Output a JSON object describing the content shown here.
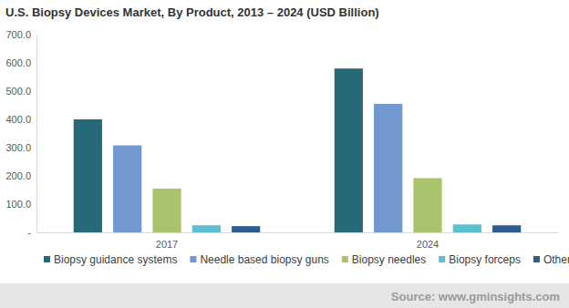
{
  "chart_data": {
    "type": "bar",
    "title": "U.S. Biopsy Devices Market, By Product, 2013 – 2024 (USD Billion)",
    "source": "Source: www.gminsights.com",
    "categories": [
      "2017",
      "2024"
    ],
    "series": [
      {
        "name": "Biopsy guidance systems",
        "color": "#266a7a",
        "values": [
          400,
          580
        ]
      },
      {
        "name": "Needle based biopsy guns",
        "color": "#7199cf",
        "values": [
          308,
          455
        ]
      },
      {
        "name": "Biopsy needles",
        "color": "#a9c46d",
        "values": [
          155,
          192
        ]
      },
      {
        "name": "Biopsy forceps",
        "color": "#5bbfd0",
        "values": [
          25,
          28
        ]
      },
      {
        "name": "Others",
        "color": "#2e5c8e",
        "values": [
          22,
          25
        ]
      }
    ],
    "ylim": [
      0,
      700
    ],
    "yticks": [
      {
        "value": 0,
        "label": "-"
      },
      {
        "value": 100,
        "label": "100.0"
      },
      {
        "value": 200,
        "label": "200.0"
      },
      {
        "value": 300,
        "label": "300.0"
      },
      {
        "value": 400,
        "label": "400.0"
      },
      {
        "value": 500,
        "label": "500.0"
      },
      {
        "value": 600,
        "label": "600.0"
      },
      {
        "value": 700,
        "label": "700.0"
      }
    ],
    "grid": false,
    "legend": "bottom"
  }
}
